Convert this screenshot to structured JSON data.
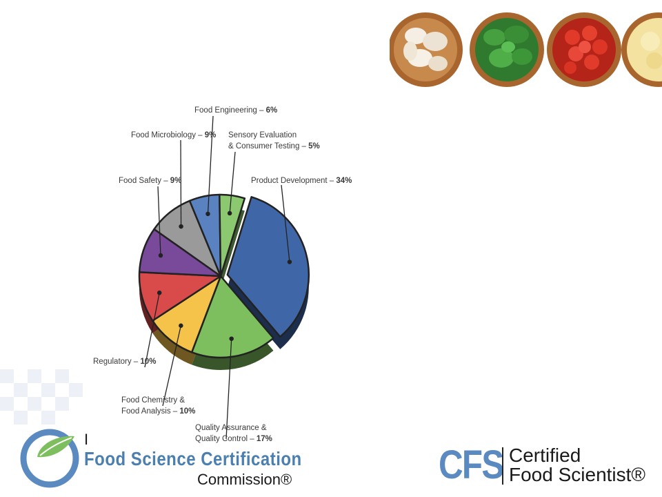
{
  "chart_data": {
    "type": "pie",
    "slices": [
      {
        "label": "Product Development – ",
        "pct_text": "34%",
        "value": 34,
        "color": "#3f67a8"
      },
      {
        "label": "Quality Assurance & Quality Control – ",
        "pct_text": "17%",
        "value": 17,
        "color": "#7dbf5e"
      },
      {
        "label": "Food Chemistry & Food Analysis – ",
        "pct_text": "10%",
        "value": 10,
        "color": "#f5c24a"
      },
      {
        "label": "Regulatory – ",
        "pct_text": "10%",
        "value": 10,
        "color": "#d94a4a"
      },
      {
        "label": "Food Safety – ",
        "pct_text": "9%",
        "value": 9,
        "color": "#7a4a9a"
      },
      {
        "label": "Food Microbiology – ",
        "pct_text": "9%",
        "value": 9,
        "color": "#9a9a9a"
      },
      {
        "label": "Food Engineering – ",
        "pct_text": "6%",
        "value": 6,
        "color": "#5b82c0"
      },
      {
        "label": "Sensory Evaluation & Consumer Testing – ",
        "pct_text": "5%",
        "value": 5,
        "color": "#8cc870"
      }
    ]
  },
  "labels": {
    "product_development": {
      "name": "Product Development – ",
      "pct": "34%"
    },
    "quality_line1": "Quality Assurance &",
    "quality_line2": "Quality Control – ",
    "quality_pct": "17%",
    "chem_line1": "Food Chemistry &",
    "chem_line2": "Food Analysis – ",
    "chem_pct": "10%",
    "regulatory": {
      "name": "Regulatory – ",
      "pct": "10%"
    },
    "food_safety": {
      "name": "Food Safety – ",
      "pct": "9%"
    },
    "microbiology": {
      "name": "Food Microbiology – ",
      "pct": "9%"
    },
    "engineering": {
      "name": "Food Engineering – ",
      "pct": "6%"
    },
    "sensory_line1": "Sensory Evaluation",
    "sensory_line2": "& Consumer Testing – ",
    "sensory_pct": "5%"
  },
  "logos": {
    "ifsc_initial": "I",
    "ifsc_line1": "Food Science Certification",
    "ifsc_line2": "Commission®",
    "cfs_mark": "CFS",
    "cfs_line1": "Certified",
    "cfs_line2": "Food Scientist®"
  },
  "colors": {
    "brand_blue": "#5a8ac0",
    "brand_green": "#7dbf5e"
  },
  "icons": [
    "garlic-bowl-icon",
    "spinach-bowl-icon",
    "tomato-bowl-icon",
    "cheese-bowl-icon",
    "leaf-logo-icon"
  ]
}
